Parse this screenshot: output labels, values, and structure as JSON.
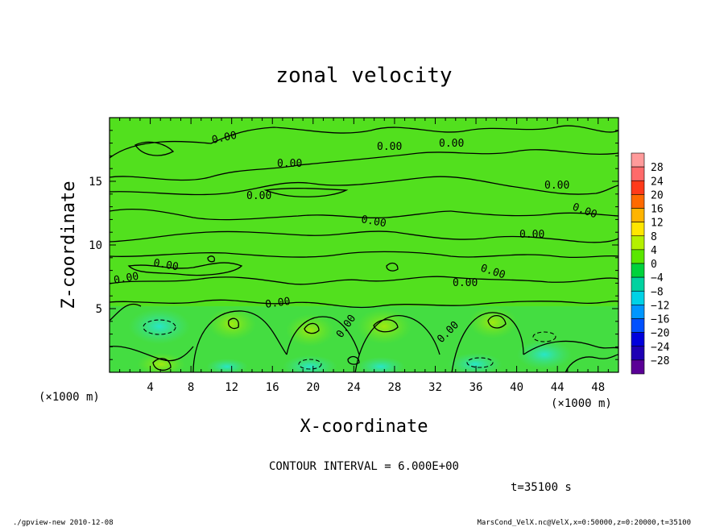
{
  "chart_data": {
    "type": "heatmap",
    "title": "zonal velocity",
    "xlabel": "X-coordinate",
    "ylabel": "Z-coordinate",
    "x_unit": "(×1000 m)",
    "xlim": [
      0,
      50
    ],
    "ylim": [
      0,
      20
    ],
    "x_ticks": [
      "4",
      "8",
      "12",
      "16",
      "20",
      "24",
      "28",
      "32",
      "36",
      "40",
      "44",
      "48"
    ],
    "y_ticks": [
      "5",
      "10",
      "15"
    ],
    "contour_label": "0.00",
    "contour_interval_text": "CONTOUR INTERVAL = 6.000E+00",
    "time_text": "t=35100 s",
    "colorbar": {
      "levels": [
        "28",
        "24",
        "20",
        "16",
        "12",
        "8",
        "4",
        "0",
        "−4",
        "−8",
        "−12",
        "−16",
        "−20",
        "−24",
        "−28"
      ],
      "colors": [
        "#ff9a9a",
        "#ff6a6a",
        "#ff3a1a",
        "#ff6a00",
        "#ffb400",
        "#ffe600",
        "#b4f000",
        "#5ae600",
        "#00d23c",
        "#00d2a0",
        "#00d2e6",
        "#0096ff",
        "#0050ff",
        "#0000dc",
        "#1e00b4",
        "#5a0096"
      ]
    }
  },
  "footer": {
    "left": "./gpview-new   2010-12-08",
    "right": "MarsCond_VelX.nc@VelX,x=0:50000,z=0:20000,t=35100"
  }
}
